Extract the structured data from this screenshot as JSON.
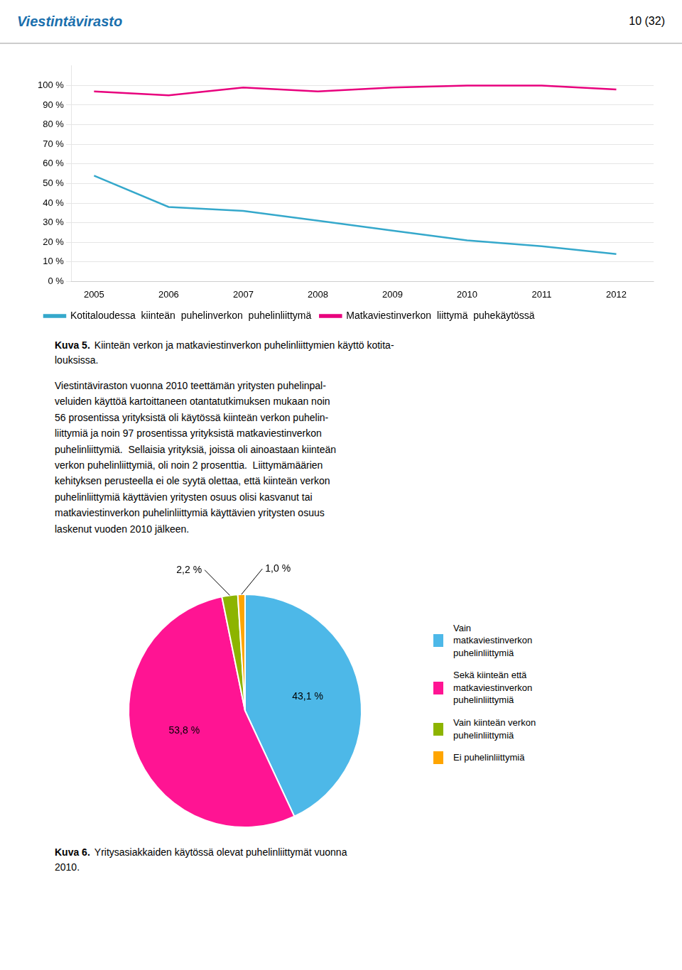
{
  "page": {
    "logo": "Viestintävirasto",
    "header": "10 (32)",
    "body_text": "Viestintäviraston vuonna 2010 teettämän yritysten puhelinpal-\nveluiden käyttöä kartoittaneen otantatutkimuksen mukaan noin\n56 prosentissa yrityksistä oli käytössä kiinteän verkon puhelin-\nliittymiä ja noin 97 prosentissa yrityksistä matkaviestinverkon\npuhelinliittymiä.  Sellaisia yrityksiä, joissa oli ainoastaan kiinteän\nverkon puhelinliittymiä, oli noin 2 prosenttia.  Liittymämäärien\nkehityksen perusteella ei ole syytä olettaa, että kiinteän verkon\npuhelinliittymiä käyttävien yritysten osuus olisi kasvanut tai\nmatkaviestinverkon puhelinliittymiä käyttävien yritysten osuus\nlaskenut vuoden 2010 jälkeen."
  },
  "chart_data": [
    {
      "type": "line",
      "caption_label": "Kuva 5.",
      "caption": "Kiinteän verkon ja matkaviestinverkon puhelinliittymien käyttö kotita-\nlouksissa.",
      "x": [
        2005,
        2006,
        2007,
        2008,
        2009,
        2010,
        2011,
        2012
      ],
      "series": [
        {
          "name": "Kotitaloudessa  kiinteän  puhelinverkon  puhelinliittymä",
          "color": "#35A8CB",
          "values": [
            54,
            38,
            36,
            31,
            26,
            21,
            18,
            14
          ]
        },
        {
          "name": "Matkaviestinverkon  liittymä  puhekäytössä",
          "color": "#E8007D",
          "values": [
            97,
            95,
            99,
            97,
            99,
            100,
            100,
            98
          ]
        }
      ],
      "xlim": [
        2004.7,
        2012.5
      ],
      "xticks": [
        2005,
        2006,
        2007,
        2008,
        2009,
        2010,
        2011,
        2012
      ],
      "ylim": [
        0,
        110
      ],
      "yticks": [
        {
          "value": 0,
          "label": "0 %"
        },
        {
          "value": 10,
          "label": "10 %"
        },
        {
          "value": 20,
          "label": "20 %"
        },
        {
          "value": 30,
          "label": "30 %"
        },
        {
          "value": 40,
          "label": "40 %"
        },
        {
          "value": 50,
          "label": "50 %"
        },
        {
          "value": 60,
          "label": "60 %"
        },
        {
          "value": 70,
          "label": "70 %"
        },
        {
          "value": 80,
          "label": "80 %"
        },
        {
          "value": 90,
          "label": "90 %"
        },
        {
          "value": 100,
          "label": "100 %"
        }
      ],
      "grid": true,
      "legend": "bottom"
    },
    {
      "type": "pie",
      "caption_label": "Kuva 6.",
      "caption": "Yritysasiakkaiden käytössä olevat puhelinliittymät vuonna\n2010.",
      "categories": [
        "Vain\nmatkaviestinverkon\npuhelinliittymiä",
        "Sekä kiinteän että\nmatkaviestinverkon\npuhelinliittymiä",
        "Vain kiinteän verkon\npuhelinliittymiä",
        "Ei puhelinliittymiä"
      ],
      "values": [
        43.1,
        53.8,
        2.2,
        1.0
      ],
      "value_labels": [
        "43,1 %",
        "53,8 %",
        "2,2 %",
        "1,0 %"
      ],
      "colors": [
        "#4DB8E8",
        "#FF1493",
        "#8DB400",
        "#FFA500"
      ],
      "data_labels": true,
      "legend": "right"
    }
  ]
}
